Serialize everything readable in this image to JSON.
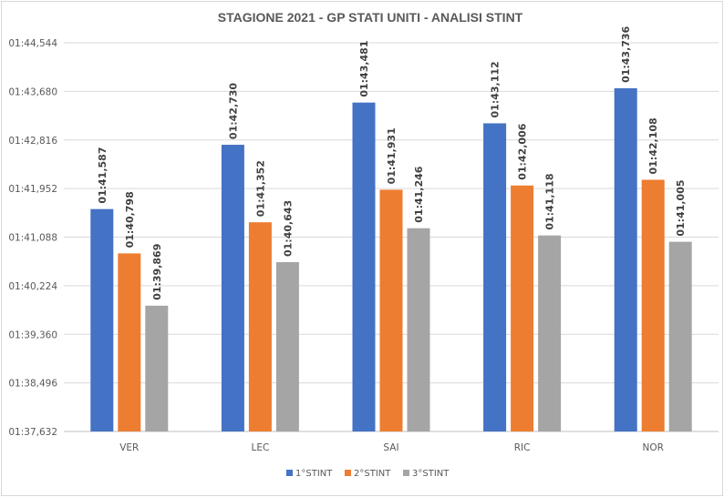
{
  "chart_data": {
    "type": "bar",
    "title": "STAGIONE 2021 - GP STATI UNITI -  ANALISI STINT",
    "categories": [
      "VER",
      "LEC",
      "SAI",
      "RIC",
      "NOR"
    ],
    "series": [
      {
        "name": "1°STINT",
        "color": "#4472c4",
        "values": [
          101.587,
          102.73,
          103.481,
          103.112,
          103.736
        ],
        "labels": [
          "01:41,587",
          "01:42,730",
          "01:43,481",
          "01:43,112",
          "01:43,736"
        ]
      },
      {
        "name": "2°STINT",
        "color": "#ed7d31",
        "values": [
          100.798,
          101.352,
          101.931,
          102.006,
          102.108
        ],
        "labels": [
          "01:40,798",
          "01:41,352",
          "01:41,931",
          "01:42,006",
          "01:42,108"
        ]
      },
      {
        "name": "3°STINT",
        "color": "#a5a5a5",
        "values": [
          99.869,
          100.643,
          101.246,
          101.118,
          101.005
        ],
        "labels": [
          "01:39,869",
          "01:40,643",
          "01:41,246",
          "01:41,118",
          "01:41,005"
        ]
      }
    ],
    "yticks": [
      97.632,
      98.496,
      99.36,
      100.224,
      101.088,
      101.952,
      102.816,
      103.68,
      104.544
    ],
    "ytick_labels": [
      "01:37,632",
      "01:38,496",
      "01:39,360",
      "01:40,224",
      "01:41,088",
      "01:41,952",
      "01:42,816",
      "01:43,680",
      "01:44,544"
    ],
    "ylim": [
      97.632,
      104.544
    ],
    "xlabel": "",
    "ylabel": "",
    "grid": true,
    "legend": "bottom"
  }
}
